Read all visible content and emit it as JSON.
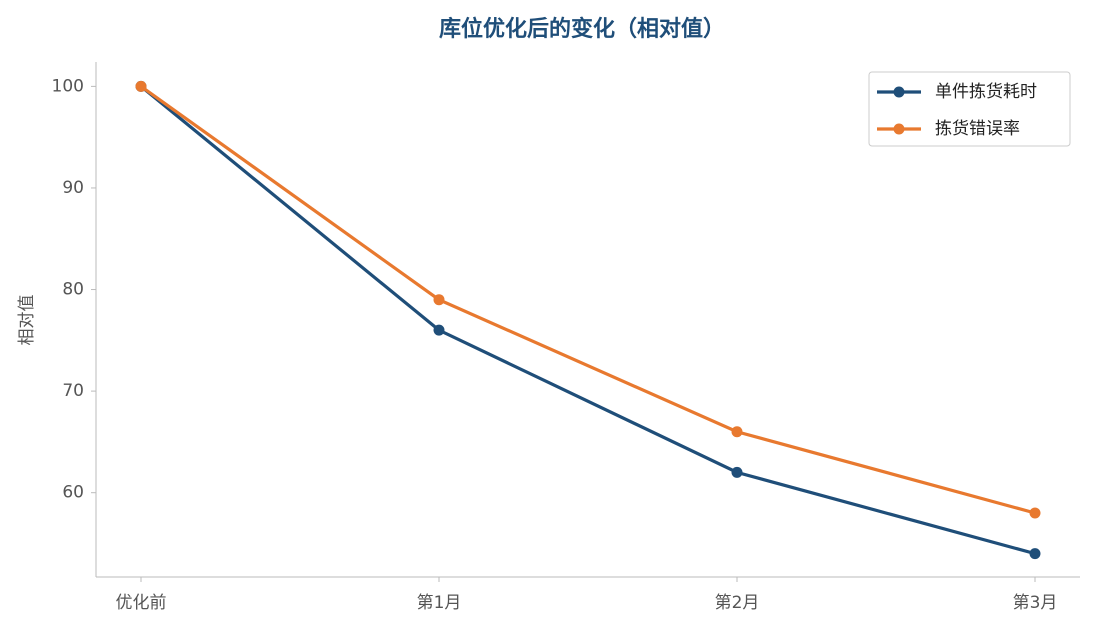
{
  "chart_data": {
    "type": "line",
    "title": "库位优化后的变化（相对值）",
    "y_label": "相对值",
    "categories": [
      "优化前",
      "第1月",
      "第2月",
      "第3月"
    ],
    "series": [
      {
        "name": "单件拣货耗时",
        "color": "#1f4e79",
        "values": [
          100,
          76,
          62,
          54
        ]
      },
      {
        "name": "拣货错误率",
        "color": "#e8792f",
        "values": [
          100,
          79,
          66,
          58
        ]
      }
    ],
    "ylim": [
      51.7,
      102.4
    ],
    "yticks": [
      60,
      70,
      80,
      90,
      100
    ],
    "grid": false,
    "legend": "upper right"
  }
}
